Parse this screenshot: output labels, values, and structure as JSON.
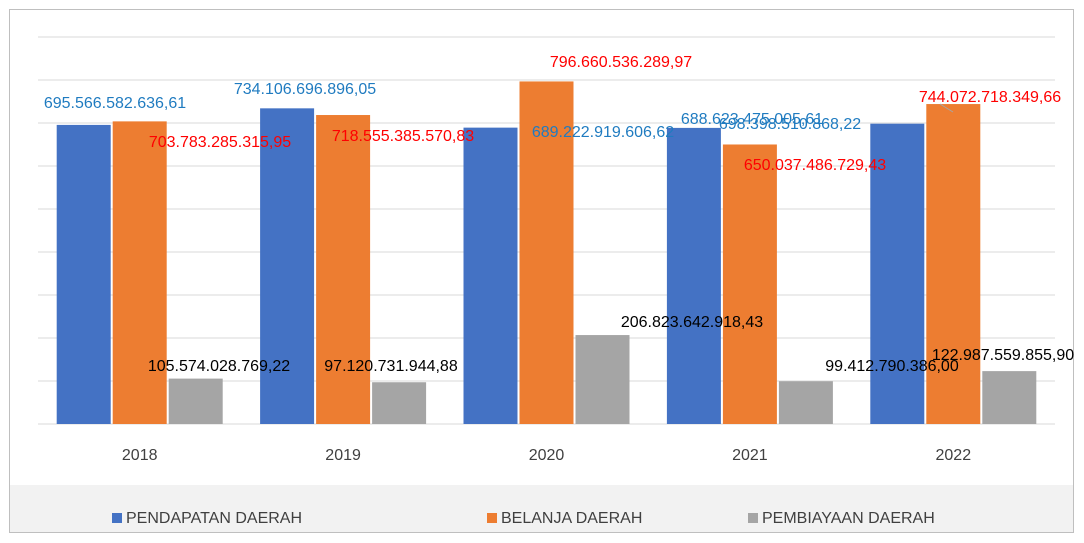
{
  "chart_data": {
    "type": "bar",
    "categories": [
      "2018",
      "2019",
      "2020",
      "2021",
      "2022"
    ],
    "series": [
      {
        "name": "PENDAPATAN DAERAH",
        "color": "#4472c4",
        "label_color": "#1f7bc0",
        "values": [
          695566582636.61,
          734106696896.05,
          689222919606.62,
          688623475005.61,
          698398510868.22
        ],
        "value_labels": [
          "695.566.582.636,61",
          "734.106.696.896,05",
          "689.222.919.606,62",
          "688.623.475.005,61",
          "698.398.510.868,22"
        ]
      },
      {
        "name": "BELANJA DAERAH",
        "color": "#ed7d31",
        "label_color": "#ff0000",
        "values": [
          703783285315.95,
          718555385570.83,
          796660536289.97,
          650037486729.43,
          744072718349.66
        ],
        "value_labels": [
          "703.783.285.315,95",
          "718.555.385.570,83",
          "796.660.536.289,97",
          "650.037.486.729,43",
          "744.072.718.349,66"
        ]
      },
      {
        "name": "PEMBIAYAAN DAERAH",
        "color": "#a5a5a5",
        "label_color": "#000000",
        "values": [
          105574028769.22,
          97120731944.88,
          206823642918.43,
          99412790386.0,
          122987559855.9
        ],
        "value_labels": [
          "105.574.028.769,22",
          "97.120.731.944,88",
          "206.823.642.918,43",
          "99.412.790.386,00",
          "122.987.559.855,90"
        ]
      }
    ],
    "ylim": [
      0,
      900000000000
    ],
    "yticks": [
      0,
      100000000000,
      200000000000,
      300000000000,
      400000000000,
      500000000000,
      600000000000,
      700000000000,
      800000000000,
      900000000000
    ],
    "grid": true,
    "legend": "bottom"
  }
}
